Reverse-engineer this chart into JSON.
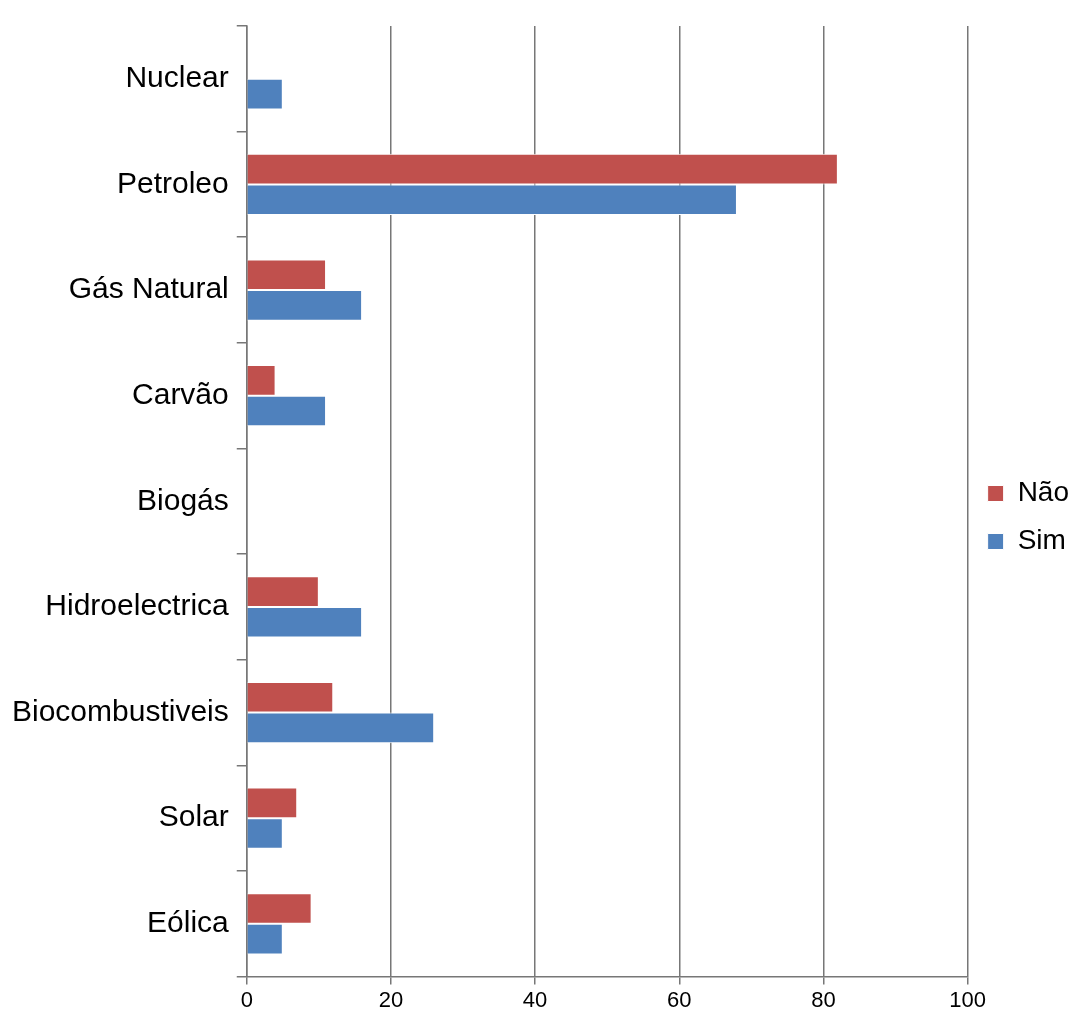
{
  "chart_data": {
    "type": "bar",
    "orientation": "horizontal",
    "categories": [
      "Nuclear",
      "Petroleo",
      "Gás Natural",
      "Carvão",
      "Biogás",
      "Hidroelectrica",
      "Biocombustiveis",
      "Solar",
      "Eólica"
    ],
    "series": [
      {
        "name": "Não",
        "color": "#c0504d",
        "values": [
          0,
          82,
          11,
          4,
          0,
          10,
          12,
          7,
          9
        ]
      },
      {
        "name": "Sim",
        "color": "#4f81bd",
        "values": [
          5,
          68,
          16,
          11,
          0,
          16,
          26,
          5,
          5
        ]
      }
    ],
    "xlim": [
      0,
      100
    ],
    "xticks": [
      0,
      20,
      40,
      60,
      80,
      100
    ],
    "grid": "x",
    "legend": "right"
  }
}
